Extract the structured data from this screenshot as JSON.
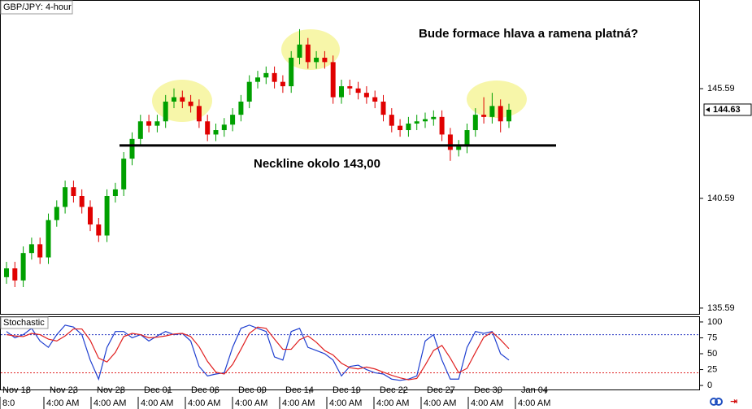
{
  "chart_data": [
    {
      "type": "candlestick",
      "title": "GBP/JPY: 4-hour",
      "annotations": [
        "Bude formace hlava a ramena platná?",
        "Neckline okolo 143,00"
      ],
      "neckline": 143.0,
      "last_price": 144.63,
      "up_color": "#00a000",
      "down_color": "#e00000",
      "open": [
        137.0,
        137.4,
        136.85,
        138.1,
        138.5,
        137.9,
        139.6,
        140.2,
        141.1,
        140.7,
        140.2,
        139.4,
        138.9,
        140.7,
        141.0,
        142.4,
        143.3,
        144.1,
        143.9,
        144.1,
        145.0,
        145.2,
        145.0,
        144.8,
        144.1,
        143.5,
        143.7,
        143.95,
        144.4,
        145.0,
        145.9,
        146.1,
        146.3,
        145.9,
        145.7,
        147.0,
        147.6,
        146.8,
        147.0,
        146.8,
        145.2,
        145.7,
        145.6,
        145.4,
        145.2,
        145.0,
        144.4,
        143.9,
        143.7,
        144.0,
        144.1,
        144.2,
        144.3,
        143.5,
        142.8,
        142.95,
        143.7,
        144.4,
        144.3,
        144.8,
        144.1
      ],
      "high": [
        137.7,
        137.7,
        138.4,
        138.8,
        138.8,
        139.9,
        140.5,
        141.4,
        141.4,
        141.0,
        140.5,
        139.7,
        141.0,
        141.3,
        142.7,
        143.6,
        144.4,
        144.4,
        144.4,
        145.3,
        145.6,
        145.5,
        145.3,
        145.1,
        144.4,
        144.0,
        144.25,
        144.7,
        145.3,
        146.2,
        146.4,
        146.6,
        146.6,
        146.2,
        147.3,
        148.3,
        147.9,
        147.3,
        147.3,
        147.1,
        146.0,
        146.0,
        145.9,
        145.7,
        145.5,
        145.3,
        144.7,
        144.2,
        144.3,
        144.4,
        144.5,
        144.6,
        144.6,
        143.8,
        143.25,
        144.0,
        144.7,
        145.2,
        145.4,
        145.1,
        144.9
      ],
      "low": [
        136.7,
        136.55,
        136.55,
        137.8,
        137.6,
        137.6,
        139.3,
        139.9,
        140.4,
        139.9,
        139.1,
        138.6,
        138.6,
        140.4,
        140.7,
        142.1,
        143.0,
        143.6,
        143.6,
        143.8,
        144.7,
        144.7,
        144.5,
        143.8,
        143.2,
        143.2,
        143.4,
        143.65,
        144.1,
        144.7,
        145.6,
        145.8,
        145.6,
        145.4,
        145.4,
        146.7,
        146.5,
        146.5,
        146.5,
        144.9,
        144.9,
        145.3,
        145.1,
        144.9,
        144.7,
        144.1,
        143.6,
        143.4,
        143.4,
        143.7,
        143.8,
        143.9,
        143.2,
        142.3,
        142.5,
        142.65,
        143.4,
        144.0,
        144.0,
        143.6,
        143.8
      ],
      "close": [
        137.4,
        136.85,
        138.1,
        138.5,
        137.9,
        139.6,
        140.2,
        141.1,
        140.7,
        140.2,
        139.4,
        138.9,
        140.7,
        141.0,
        142.4,
        143.3,
        144.1,
        143.9,
        144.1,
        145.0,
        145.2,
        145.0,
        144.8,
        144.1,
        143.5,
        143.7,
        143.95,
        144.4,
        145.0,
        145.9,
        146.1,
        146.3,
        145.9,
        145.7,
        147.0,
        147.6,
        146.8,
        147.0,
        146.8,
        145.2,
        145.7,
        145.6,
        145.4,
        145.2,
        145.0,
        144.4,
        143.9,
        143.7,
        144.0,
        144.1,
        144.2,
        144.3,
        143.5,
        142.8,
        142.95,
        143.7,
        144.4,
        144.3,
        144.8,
        144.1,
        144.63
      ],
      "ylim": [
        135.29,
        149.63
      ],
      "yticks": [
        135.59,
        140.59,
        145.59
      ],
      "x_date_labels": [
        "Nov 18",
        "Nov 23",
        "Nov 28",
        "Dec 01",
        "Dec 06",
        "Dec 09",
        "Dec 14",
        "Dec 19",
        "Dec 22",
        "Dec 27",
        "Dec 30",
        "Jan 04"
      ],
      "x_time_labels": [
        "8:0",
        "4:00 AM",
        "4:00 AM",
        "4:00 AM",
        "4:00 AM",
        "4:00 AM",
        "4:00 AM",
        "4:00 AM",
        "4:00 AM",
        "4:00 AM",
        "4:00 AM",
        "4:00 AM"
      ]
    },
    {
      "type": "line",
      "title": "Stochastic",
      "series": [
        {
          "color": "#1f3fd0",
          "values": [
            85,
            75,
            80,
            90,
            70,
            60,
            80,
            95,
            92,
            80,
            40,
            10,
            60,
            85,
            85,
            75,
            80,
            70,
            78,
            85,
            80,
            82,
            70,
            30,
            15,
            18,
            20,
            60,
            90,
            95,
            90,
            85,
            45,
            40,
            85,
            90,
            60,
            55,
            50,
            40,
            15,
            30,
            32,
            25,
            20,
            18,
            10,
            8,
            10,
            15,
            70,
            80,
            40,
            10,
            10,
            60,
            85,
            82,
            85,
            50,
            40
          ]
        },
        {
          "color": "#e02020",
          "values": [
            80,
            78,
            77,
            82,
            80,
            73,
            70,
            78,
            89,
            89,
            71,
            43,
            37,
            52,
            77,
            82,
            80,
            75,
            76,
            78,
            81,
            82,
            77,
            61,
            38,
            21,
            18,
            33,
            57,
            82,
            92,
            90,
            73,
            57,
            57,
            72,
            78,
            68,
            55,
            48,
            35,
            28,
            26,
            29,
            26,
            21,
            16,
            12,
            9,
            11,
            32,
            55,
            63,
            43,
            20,
            27,
            52,
            76,
            84,
            72,
            58
          ]
        }
      ],
      "levels": [
        {
          "value": 80,
          "color": "#2030c0"
        },
        {
          "value": 20,
          "color": "#e02020"
        }
      ],
      "ylim": [
        -7.6,
        108.9
      ],
      "yticks": [
        0,
        25,
        50,
        75,
        100
      ]
    }
  ]
}
